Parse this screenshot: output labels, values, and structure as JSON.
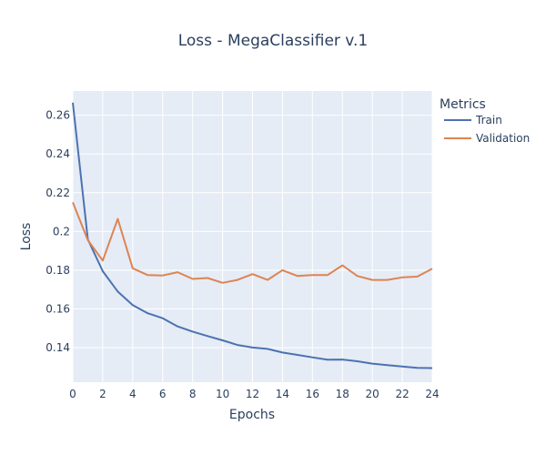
{
  "chart_data": {
    "type": "line",
    "title": "Loss - MegaClassifier v.1",
    "xlabel": "Epochs",
    "ylabel": "Loss",
    "xlim": [
      0,
      24
    ],
    "ylim": [
      0.1222,
      0.2725
    ],
    "x_ticks": [
      0,
      2,
      4,
      6,
      8,
      10,
      12,
      14,
      16,
      18,
      20,
      22,
      24
    ],
    "y_ticks": [
      0.14,
      0.16,
      0.18,
      0.2,
      0.22,
      0.24,
      0.26
    ],
    "y_tick_labels": [
      "0.14",
      "0.16",
      "0.18",
      "0.2",
      "0.22",
      "0.24",
      "0.26"
    ],
    "grid": true,
    "plot_background": "#e5ecf6",
    "legend": {
      "title": "Metrics",
      "placement": "right"
    },
    "x": [
      0,
      1,
      2,
      3,
      4,
      5,
      6,
      7,
      8,
      9,
      10,
      11,
      12,
      13,
      14,
      15,
      16,
      17,
      18,
      19,
      20,
      21,
      22,
      23,
      24
    ],
    "series": [
      {
        "name": "Train",
        "color": "#4c72b0",
        "values": [
          0.2665,
          0.196,
          0.1795,
          0.169,
          0.162,
          0.1578,
          0.1552,
          0.151,
          0.1483,
          0.146,
          0.1438,
          0.1414,
          0.1401,
          0.1394,
          0.1375,
          0.1363,
          0.135,
          0.1338,
          0.1339,
          0.133,
          0.1318,
          0.131,
          0.1303,
          0.1296,
          0.1295
        ]
      },
      {
        "name": "Validation",
        "color": "#dd8452",
        "values": [
          0.215,
          0.1955,
          0.185,
          0.2065,
          0.181,
          0.1775,
          0.1773,
          0.179,
          0.1755,
          0.176,
          0.1735,
          0.175,
          0.178,
          0.175,
          0.18,
          0.177,
          0.1775,
          0.1775,
          0.1825,
          0.177,
          0.175,
          0.175,
          0.1763,
          0.1767,
          0.1808
        ]
      }
    ]
  }
}
